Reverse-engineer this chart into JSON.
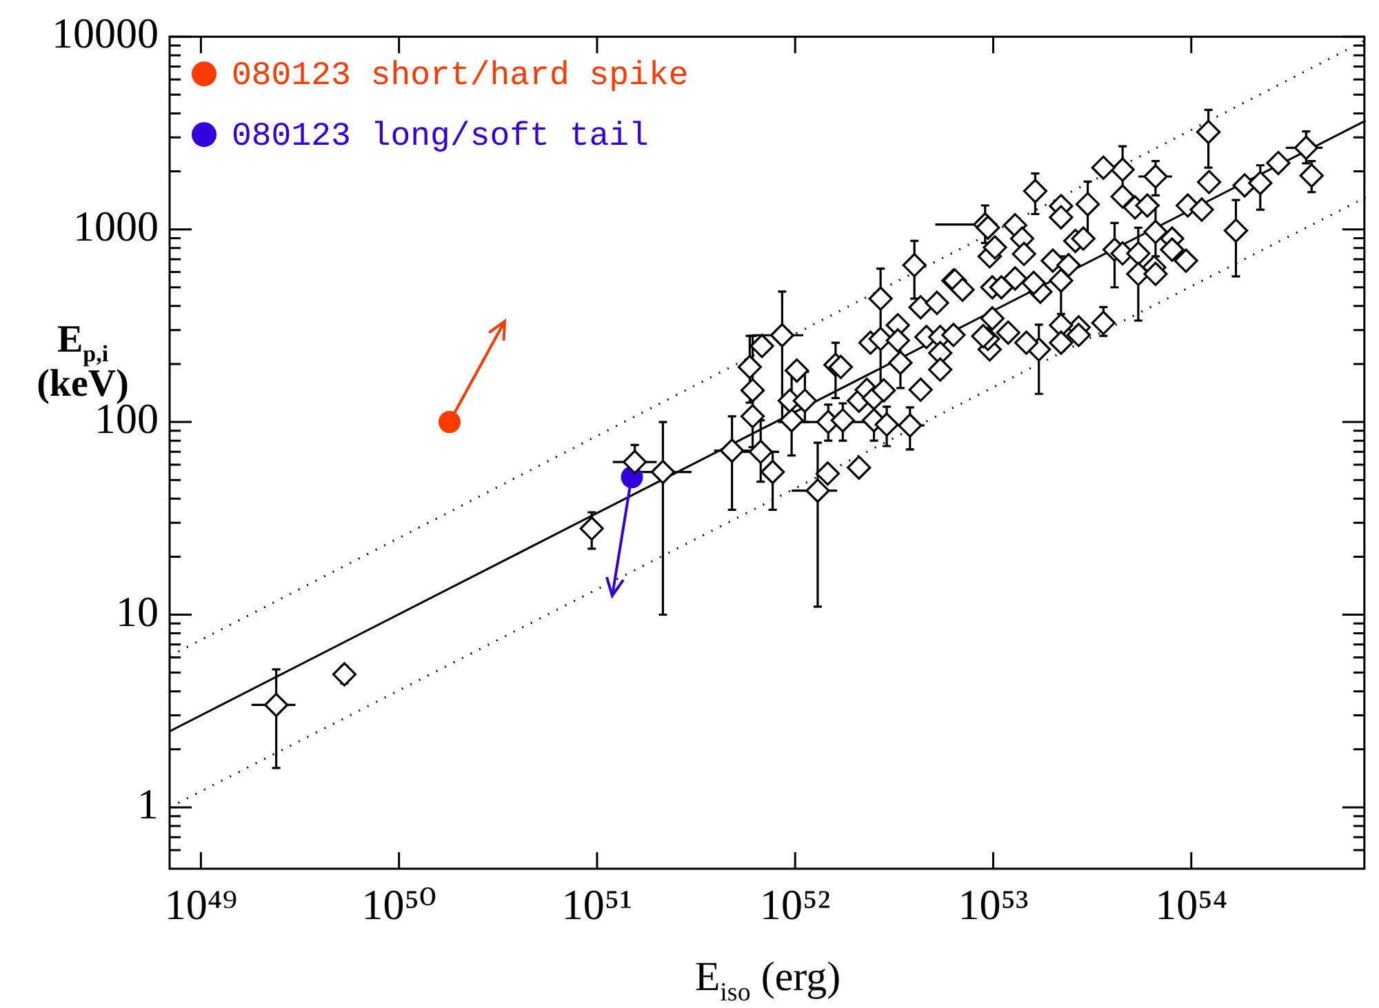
{
  "chart_data": {
    "type": "scatter",
    "xlabel": "E$_{iso}$ (erg)",
    "ylabel": "E$_{p,i}$ (keV)",
    "log": "xy",
    "legend": "top left",
    "marker": "diamond",
    "xlim": [
      6.95e+48,
      7.6e+54
    ],
    "ylim": [
      0.48,
      10000
    ],
    "xticks": [
      {
        "value": 1e+49,
        "label": "10⁴⁹"
      },
      {
        "value": 1e+50,
        "label": "10⁵⁰"
      },
      {
        "value": 1e+51,
        "label": "10⁵¹"
      },
      {
        "value": 1e+52,
        "label": "10⁵²"
      },
      {
        "value": 1e+53,
        "label": "10⁵³"
      },
      {
        "value": 1e+54,
        "label": "10⁵⁴"
      }
    ],
    "yticks": [
      {
        "value": 0.6,
        "label": null
      },
      {
        "value": 0.7,
        "label": null
      },
      {
        "value": 0.8,
        "label": null
      },
      {
        "value": 0.9,
        "label": null
      },
      1,
      {
        "value": 2,
        "label": null
      },
      {
        "value": 3,
        "label": null
      },
      {
        "value": 4,
        "label": null
      },
      {
        "value": 5,
        "label": null
      },
      {
        "value": 6,
        "label": null
      },
      {
        "value": 7,
        "label": null
      },
      {
        "value": 8,
        "label": null
      },
      {
        "value": 9,
        "label": null
      },
      10,
      {
        "value": 20,
        "label": null
      },
      {
        "value": 30,
        "label": null
      },
      {
        "value": 40,
        "label": null
      },
      {
        "value": 50,
        "label": null
      },
      {
        "value": 60,
        "label": null
      },
      {
        "value": 70,
        "label": null
      },
      {
        "value": 80,
        "label": null
      },
      {
        "value": 90,
        "label": null
      },
      100,
      {
        "value": 200,
        "label": null
      },
      {
        "value": 300,
        "label": null
      },
      {
        "value": 400,
        "label": null
      },
      {
        "value": 500,
        "label": null
      },
      {
        "value": 600,
        "label": null
      },
      {
        "value": 700,
        "label": null
      },
      {
        "value": 800,
        "label": null
      },
      {
        "value": 900,
        "label": null
      },
      1000,
      {
        "value": 2000,
        "label": null
      },
      {
        "value": 3000,
        "label": null
      },
      {
        "value": 4000,
        "label": null
      },
      {
        "value": 5000,
        "label": null
      },
      {
        "value": 6000,
        "label": null
      },
      {
        "value": 7000,
        "label": null
      },
      {
        "value": 8000,
        "label": null
      },
      {
        "value": 9000,
        "label": null
      },
      10000
    ],
    "series": [
      {
        "color": "#000000",
        "x": [
          2.4e+49,
          5.3e+49,
          9.4e+50,
          1.55e+51,
          2.15e+51,
          4.8e+51,
          6.7e+51,
          7.7e+51,
          6.1e+51,
          6.1e+51,
          5.9e+51,
          6.8e+51,
          8.6e+51,
          1.02e+52,
          9.6e+51,
          9.4e+51,
          1.12e+52,
          1.47e+52,
          1.74e+52,
          1.3e+52,
          1.46e+52,
          2.1e+52,
          1.6e+52,
          1.7e+52,
          2.5e+52,
          2.9e+52,
          3.8e+52,
          2.1e+52,
          2.3e+52,
          2.5e+52,
          2.8e+52,
          4.3e+52,
          2.4e+52,
          2.7e+52,
          2.7e+52,
          3.3e+52,
          3.3e+52,
          3.4e+52,
          4e+52,
          4.3e+52,
          5.2e+52,
          4.6e+52,
          5.4e+52,
          6.3e+52,
          5.4e+52,
          5.4e+52,
          9.1e+52,
          6.3e+52,
          9.6e+52,
          9.6e+52,
          1.22e+54,
          1.23e+54,
          1.86e+54,
          2.23e+54,
          2.75e+54,
          3.8e+54,
          4.05e+54,
          1.68e+54,
          9.6e+53,
          1.13e+54,
          6.6e+53,
          4.5e+53,
          3.6e+53,
          1.63e+53,
          4.5e+53,
          5.2e+53,
          6e+53,
          3e+53,
          2.2e+53,
          2.2e+53,
          6.6e+53,
          8e+53,
          8e+53,
          9.4e+53,
          4.1e+53,
          4.5e+53,
          5.4e+53,
          5.4e+53,
          6.5e+53,
          6.6e+53,
          2.6e+53,
          2.85e+53,
          3.6e+53,
          2.7e+53,
          2.7e+53,
          2.2e+53,
          2.2e+53,
          1.7e+53,
          1.47e+53,
          1.19e+53,
          9.4e+52,
          2.2e+53,
          1.73e+53,
          2e+53,
          2.4e+53,
          1.29e+53,
          9.4e+52,
          1.4e+53,
          1.02e+53,
          1.43e+53,
          6.4e+52,
          7e+52,
          9.9e+52,
          1.1e+53,
          1.29e+53,
          1.6e+53,
          9.9e+52,
          8.9e+52
        ],
        "values": [
          3.4,
          4.9,
          28,
          62,
          55,
          71,
          70,
          55,
          107,
          146,
          193,
          248,
          282,
          185,
          102,
          129,
          129,
          100,
          102,
          44,
          54,
          58,
          198,
          193,
          102,
          97,
          96,
          129,
          147,
          133,
          146,
          147,
          258,
          270,
          437,
          318,
          265,
          203,
          652,
          394,
          415,
          276,
          276,
          283,
          228,
          187,
          1060,
          542,
          238,
          724,
          3200,
          1760,
          1690,
          1740,
          2210,
          2650,
          1900,
          985,
          1330,
          1265,
          1880,
          2040,
          2090,
          1580,
          1480,
          1300,
          1330,
          1350,
          1320,
          1155,
          970,
          895,
          785,
          688,
          785,
          750,
          750,
          587,
          635,
          587,
          871,
          895,
          327,
          310,
          283,
          318,
          258,
          238,
          258,
          291,
          270,
          542,
          474,
          688,
          652,
          1050,
          1020,
          895,
          806,
          745,
          542,
          486,
          500,
          500,
          556,
          527,
          345,
          279
        ],
        "errors": [
          [
            1.6,
            5.2
          ],
          [
            4.4,
            5.4
          ],
          [
            22,
            34
          ],
          [
            62,
            76
          ],
          [
            10,
            100
          ],
          [
            35,
            107
          ],
          [
            49,
            102
          ],
          [
            35,
            70
          ],
          [
            74,
            140
          ],
          [
            146,
            280
          ],
          [
            126,
            280
          ],
          null,
          [
            100,
            475
          ],
          null,
          [
            67,
            182
          ],
          null,
          [
            100,
            182
          ],
          [
            80,
            123
          ],
          [
            80,
            125
          ],
          [
            11,
            78
          ],
          null,
          null,
          [
            133,
            258
          ],
          null,
          [
            80,
            125
          ],
          [
            75,
            120
          ],
          [
            72,
            119
          ],
          null,
          null,
          null,
          null,
          null,
          null,
          null,
          [
            152,
            625
          ],
          null,
          null,
          [
            150,
            260
          ],
          [
            437,
            871
          ],
          null,
          null,
          null,
          null,
          null,
          [
            170,
            300
          ],
          null,
          [
            850,
            1330
          ],
          null,
          null,
          null,
          [
            2090,
            4170
          ],
          null,
          null,
          [
            1265,
            2150
          ],
          null,
          [
            2200,
            3220
          ],
          [
            1560,
            2260
          ],
          [
            570,
            1420
          ],
          null,
          null,
          [
            1500,
            2260
          ],
          [
            1440,
            2700
          ],
          null,
          [
            1200,
            1950
          ],
          null,
          null,
          null,
          [
            895,
            1770
          ],
          null,
          null,
          [
            724,
            1330
          ],
          null,
          null,
          null,
          [
            500,
            1080
          ],
          null,
          [
            336,
            1020
          ],
          null,
          null,
          null,
          null,
          null,
          [
            280,
            395
          ],
          null,
          null,
          null,
          null,
          [
            140,
            320
          ],
          null,
          null,
          null,
          [
            364,
            724
          ],
          null,
          null,
          null,
          null,
          null,
          null,
          null,
          null,
          null,
          null,
          null,
          null,
          null,
          null,
          null,
          null
        ],
        "xerrors": [
          [
            1.8e+49,
            3e+49
          ],
          null,
          null,
          [
            1.2e+51,
            2e+51
          ],
          [
            1.6e+51,
            3e+51
          ],
          [
            3.9e+51,
            5.9e+51
          ],
          [
            5.4e+51,
            8.3e+51
          ],
          null,
          null,
          null,
          null,
          null,
          [
            6.1e+51,
            1.1e+52
          ],
          null,
          null,
          null,
          null,
          [
            1.1e+52,
            2.5e+52
          ],
          null,
          [
            9.6e+51,
            1.63e+52
          ],
          null,
          null,
          null,
          null,
          null,
          null,
          [
            3.1e+52,
            4.5e+52
          ],
          null,
          null,
          null,
          null,
          null,
          null,
          null,
          null,
          null,
          null,
          null,
          null,
          null,
          null,
          null,
          null,
          null,
          null,
          null,
          [
            5.1e+52,
            1.05e+53
          ],
          null,
          null,
          null,
          null,
          null,
          null,
          null,
          null,
          [
            3e+54,
            4.6e+54
          ],
          null,
          null,
          null,
          null,
          [
            5.4e+53,
            8e+53
          ],
          null,
          null,
          null,
          null,
          null,
          null,
          null,
          null,
          null,
          null,
          null,
          null,
          null,
          null,
          null,
          null,
          null,
          null,
          null,
          null,
          null,
          null,
          null,
          null,
          null,
          null,
          null,
          null,
          null,
          null,
          null,
          null,
          null,
          null,
          null,
          null,
          null,
          null,
          null,
          null,
          null,
          null,
          null,
          null,
          null,
          null,
          null
        ]
      },
      {
        "name": "080123 short/hard spike",
        "color": "#ff3a00",
        "marker": "circle",
        "x": [
          1.8e+50
        ],
        "values": [
          100
        ]
      },
      {
        "name": "080123 long/soft tail",
        "color": "#3300dd",
        "marker": "circle",
        "x": [
          1.5e+51
        ],
        "values": [
          51.7
        ]
      },
      {
        "type": "line",
        "color": "#000000",
        "marker": "none",
        "line_style": "solid",
        "x": [
          6.95e+48,
          7.6e+54
        ],
        "values": [
          2.48,
          3670
        ]
      },
      {
        "type": "line",
        "color": "#000000",
        "marker": "none",
        "line_style": "dotted",
        "x": [
          6.95e+48,
          7.6e+54
        ],
        "values": [
          6.1,
          9600
        ]
      },
      {
        "type": "line",
        "color": "#000000",
        "marker": "none",
        "line_style": "dotted",
        "x": [
          6.95e+48,
          7.6e+54
        ],
        "values": [
          1.0,
          1466
        ]
      }
    ]
  }
}
